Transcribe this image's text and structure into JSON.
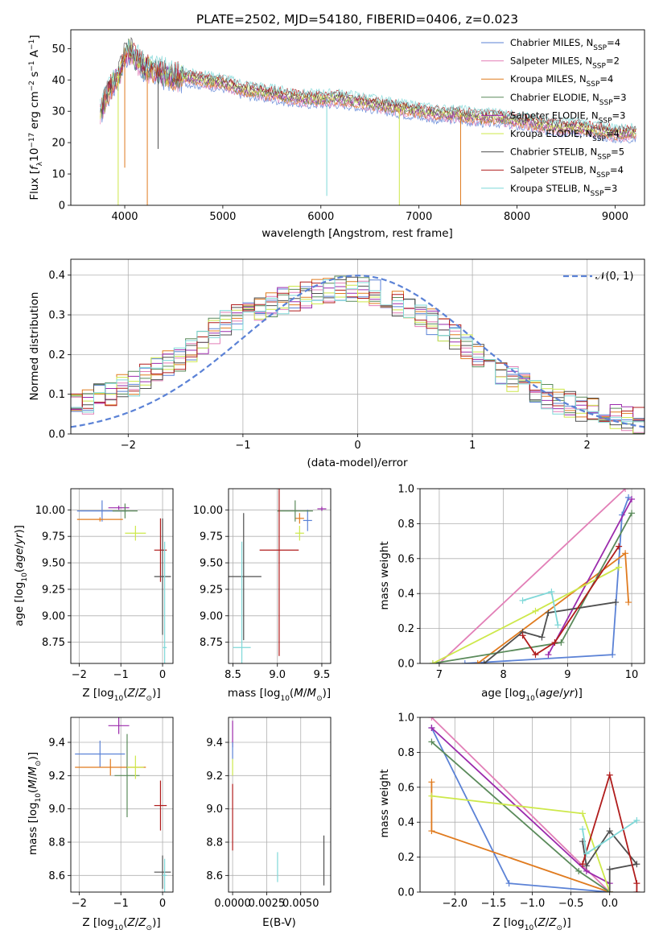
{
  "colors": {
    "Chabrier MILES": "#5b82d6",
    "Salpeter MILES": "#e27fb7",
    "Kroupa MILES": "#e07b1f",
    "Chabrier ELODIE": "#5a8a5a",
    "Salpeter ELODIE": "#9b2aac",
    "Kroupa ELODIE": "#cde84a",
    "Chabrier STELIB": "#4f4f4f",
    "Salpeter STELIB": "#b01c1c",
    "Kroupa STELIB": "#7fd8d8",
    "gaussian": "#5b82d6"
  },
  "chart_data": [
    {
      "id": "spectrum",
      "type": "line",
      "title": "PLATE=2502, MJD=54180, FIBERID=0406, z=0.023",
      "xlabel": "wavelength [Angstrom, rest frame]",
      "ylabel": "Flux [f_λ10^-17 erg cm^-2 s^-1 A^-1]",
      "xlim": [
        3450,
        9300
      ],
      "ylim": [
        0,
        56
      ],
      "xticks": [
        4000,
        5000,
        6000,
        7000,
        8000,
        9000
      ],
      "yticks": [
        0,
        10,
        20,
        30,
        40,
        50
      ],
      "legend_position": "upper-right",
      "series": [
        {
          "name": "Chabrier MILES",
          "n_ssp": "4"
        },
        {
          "name": "Salpeter MILES",
          "n_ssp": "2"
        },
        {
          "name": "Kroupa MILES",
          "n_ssp": "4"
        },
        {
          "name": "Chabrier ELODIE",
          "n_ssp": "3"
        },
        {
          "name": "Salpeter ELODIE",
          "n_ssp": "3"
        },
        {
          "name": "Kroupa ELODIE",
          "n_ssp": "4"
        },
        {
          "name": "Chabrier STELIB",
          "n_ssp": "5"
        },
        {
          "name": "Salpeter STELIB",
          "n_ssp": "4"
        },
        {
          "name": "Kroupa STELIB",
          "n_ssp": "3"
        }
      ],
      "continuum": {
        "x": [
          3750,
          3800,
          3850,
          3900,
          3950,
          4000,
          4050,
          4100,
          4200,
          4300,
          4400,
          4500,
          4600,
          4800,
          5000,
          5200,
          5400,
          5600,
          5800,
          6000,
          6200,
          6400,
          6600,
          6800,
          7000,
          7200,
          7400,
          7600,
          7800,
          8000,
          8200,
          8400,
          8600,
          8800,
          9000,
          9200
        ],
        "y": [
          30,
          34,
          37,
          40,
          43,
          48,
          50,
          47,
          44,
          43,
          42,
          41,
          41,
          40,
          39,
          37,
          36,
          35,
          34,
          34,
          34,
          33,
          32,
          31,
          30,
          29,
          29,
          28,
          28,
          27,
          26,
          25,
          25,
          24,
          23,
          23
        ]
      },
      "dips": [
        {
          "x": 3933,
          "y": 0
        },
        {
          "x": 4000,
          "y": 12
        },
        {
          "x": 4230,
          "y": 0
        },
        {
          "x": 4340,
          "y": 18
        },
        {
          "x": 6060,
          "y": 3
        },
        {
          "x": 6800,
          "y": 0
        },
        {
          "x": 7425,
          "y": 0
        }
      ]
    },
    {
      "id": "residuals",
      "type": "step",
      "xlabel": "(data-model)/error",
      "ylabel": "Normed distribution",
      "xlim": [
        -2.5,
        2.5
      ],
      "ylim": [
        0,
        0.44
      ],
      "xticks": [
        -2,
        -1,
        0,
        1,
        2
      ],
      "yticks": [
        0.0,
        0.1,
        0.2,
        0.3,
        0.4
      ],
      "legend": [
        {
          "name": "𝒩(0, 1)"
        }
      ],
      "legend_position": "upper-right",
      "grid": true,
      "bin_width": 0.1,
      "envelope": {
        "x": [
          -2.5,
          -2.0,
          -1.5,
          -1.2,
          -1.0,
          -0.6,
          -0.3,
          0.0,
          0.3,
          0.6,
          1.0,
          1.3,
          1.6,
          2.0,
          2.5
        ],
        "y": [
          0.07,
          0.12,
          0.2,
          0.27,
          0.3,
          0.34,
          0.36,
          0.37,
          0.34,
          0.29,
          0.21,
          0.15,
          0.1,
          0.06,
          0.03
        ]
      },
      "gaussian": {
        "mean": 0,
        "std": 1
      }
    },
    {
      "id": "age-vs-Z",
      "type": "errorbar",
      "xlabel": "Z [log10(Z/Z_sun)]",
      "ylabel": "age [log10(age/yr)]",
      "xlim": [
        -2.2,
        0.25
      ],
      "ylim": [
        8.55,
        10.2
      ],
      "xticks": [
        -2,
        -1,
        0
      ],
      "yticks": [
        8.75,
        9.0,
        9.25,
        9.5,
        9.75,
        10.0
      ],
      "points": [
        {
          "series": "Chabrier MILES",
          "x": -1.45,
          "xerr": 0.6,
          "y": 9.99,
          "yerr": 0.1
        },
        {
          "series": "Kroupa MILES",
          "x": -1.5,
          "xerr": 0.55,
          "y": 9.91,
          "yerr": 0.02
        },
        {
          "series": "Salpeter ELODIE",
          "x": -1.05,
          "xerr": 0.25,
          "y": 10.02,
          "yerr": 0.02
        },
        {
          "series": "Chabrier ELODIE",
          "x": -0.9,
          "xerr": 0.3,
          "y": 9.99,
          "yerr": 0.07
        },
        {
          "series": "Kroupa ELODIE",
          "x": -0.65,
          "xerr": 0.25,
          "y": 9.78,
          "yerr": 0.07
        },
        {
          "series": "Salpeter STELIB",
          "x": -0.05,
          "xerr": 0.15,
          "y": 9.62,
          "yerr": 0.3
        },
        {
          "series": "Chabrier STELIB",
          "x": 0.0,
          "xerr": 0.2,
          "y": 9.37,
          "yerr": 0.55
        },
        {
          "series": "Kroupa STELIB",
          "x": 0.05,
          "xerr": 0.05,
          "y": 8.7,
          "yerr": 1.0
        }
      ]
    },
    {
      "id": "age-vs-mass",
      "type": "errorbar",
      "xlabel": "mass [log10(M/M_sun)]",
      "ylabel": "",
      "xlim": [
        8.45,
        9.6
      ],
      "ylim": [
        8.55,
        10.2
      ],
      "xticks": [
        8.5,
        9.0,
        9.5
      ],
      "yticks": [
        8.75,
        9.0,
        9.25,
        9.5,
        9.75,
        10.0
      ],
      "points": [
        {
          "series": "Chabrier MILES",
          "x": 9.34,
          "xerr": 0.05,
          "y": 9.9,
          "yerr": 0.1
        },
        {
          "series": "Kroupa MILES",
          "x": 9.25,
          "xerr": 0.05,
          "y": 9.92,
          "yerr": 0.05
        },
        {
          "series": "Salpeter ELODIE",
          "x": 9.5,
          "xerr": 0.05,
          "y": 10.01,
          "yerr": 0.02
        },
        {
          "series": "Chabrier ELODIE",
          "x": 9.2,
          "xerr": 0.2,
          "y": 9.99,
          "yerr": 0.1
        },
        {
          "series": "Kroupa ELODIE",
          "x": 9.25,
          "xerr": 0.05,
          "y": 9.78,
          "yerr": 0.07
        },
        {
          "series": "Salpeter STELIB",
          "x": 9.02,
          "xerr": 0.22,
          "y": 9.62,
          "yerr": 1.0
        },
        {
          "series": "Chabrier STELIB",
          "x": 8.62,
          "xerr": 0.2,
          "y": 9.37,
          "yerr": 0.6
        },
        {
          "series": "Kroupa STELIB",
          "x": 8.6,
          "xerr": 0.1,
          "y": 8.7,
          "yerr": 1.0
        }
      ]
    },
    {
      "id": "weight-vs-age",
      "type": "line",
      "xlabel": "age [log10(age/yr)]",
      "ylabel": "mass weight",
      "xlim": [
        6.7,
        10.2
      ],
      "ylim": [
        0,
        1.0
      ],
      "xticks": [
        7,
        8,
        9,
        10
      ],
      "yticks": [
        0.0,
        0.2,
        0.4,
        0.6,
        0.8,
        1.0
      ],
      "grid": true,
      "series": [
        {
          "series": "Chabrier MILES",
          "x": [
            7.4,
            9.7,
            9.85,
            9.95
          ],
          "y": [
            0.0,
            0.05,
            0.85,
            0.95
          ]
        },
        {
          "series": "Salpeter MILES",
          "x": [
            7.0,
            9.9
          ],
          "y": [
            0.0,
            1.0
          ]
        },
        {
          "series": "Kroupa MILES",
          "x": [
            7.6,
            9.9,
            9.95
          ],
          "y": [
            0.0,
            0.63,
            0.35
          ]
        },
        {
          "series": "Chabrier ELODIE",
          "x": [
            6.9,
            8.9,
            10.0
          ],
          "y": [
            0.0,
            0.12,
            0.86
          ]
        },
        {
          "series": "Salpeter ELODIE",
          "x": [
            8.7,
            10.0
          ],
          "y": [
            0.05,
            0.94
          ]
        },
        {
          "series": "Kroupa ELODIE",
          "x": [
            6.9,
            8.5,
            9.8
          ],
          "y": [
            0.0,
            0.3,
            0.55
          ]
        },
        {
          "series": "Chabrier STELIB",
          "x": [
            7.7,
            8.3,
            8.6,
            8.7,
            9.75
          ],
          "y": [
            0.0,
            0.18,
            0.15,
            0.29,
            0.35
          ]
        },
        {
          "series": "Salpeter STELIB",
          "x": [
            8.3,
            8.5,
            8.8,
            9.8
          ],
          "y": [
            0.16,
            0.05,
            0.12,
            0.67
          ]
        },
        {
          "series": "Kroupa STELIB",
          "x": [
            8.3,
            8.75,
            8.85
          ],
          "y": [
            0.36,
            0.41,
            0.22
          ]
        }
      ]
    },
    {
      "id": "mass-vs-Z",
      "type": "errorbar",
      "xlabel": "Z [log10(Z/Z_sun)]",
      "ylabel": "mass [log10(M/M_sun)]",
      "xlim": [
        -2.2,
        0.25
      ],
      "ylim": [
        8.5,
        9.55
      ],
      "xticks": [
        -2,
        -1,
        0
      ],
      "yticks": [
        8.6,
        8.8,
        9.0,
        9.2,
        9.4
      ],
      "points": [
        {
          "series": "Chabrier MILES",
          "x": -1.5,
          "xerr": 0.6,
          "y": 9.33,
          "yerr": 0.08
        },
        {
          "series": "Kroupa MILES",
          "x": -1.25,
          "xerr": 0.85,
          "y": 9.25,
          "yerr": 0.05
        },
        {
          "series": "Salpeter ELODIE",
          "x": -1.05,
          "xerr": 0.25,
          "y": 9.5,
          "yerr": 0.05
        },
        {
          "series": "Chabrier ELODIE",
          "x": -0.85,
          "xerr": 0.3,
          "y": 9.2,
          "yerr": 0.25
        },
        {
          "series": "Kroupa ELODIE",
          "x": -0.65,
          "xerr": 0.2,
          "y": 9.25,
          "yerr": 0.07
        },
        {
          "series": "Salpeter STELIB",
          "x": -0.05,
          "xerr": 0.15,
          "y": 9.02,
          "yerr": 0.15
        },
        {
          "series": "Chabrier STELIB",
          "x": 0.0,
          "xerr": 0.2,
          "y": 8.62,
          "yerr": 0.1
        },
        {
          "series": "Kroupa STELIB",
          "x": 0.05,
          "xerr": 0.05,
          "y": 8.6,
          "yerr": 0.1
        }
      ]
    },
    {
      "id": "mass-vs-EBV",
      "type": "errorbar",
      "xlabel": "E(B-V)",
      "ylabel": "",
      "xlim": [
        -0.0003,
        0.0072
      ],
      "ylim": [
        8.5,
        9.55
      ],
      "xticks": [
        0.0,
        0.0025,
        0.005
      ],
      "xtick_labels": [
        "0.0000",
        "0.0025",
        "0.0050"
      ],
      "yticks": [
        8.6,
        8.8,
        9.0,
        9.2,
        9.4
      ],
      "points": [
        {
          "series": "Salpeter ELODIE",
          "x": 0.0,
          "y": 9.45,
          "yerr": 0.08
        },
        {
          "series": "Chabrier MILES",
          "x": 0.0,
          "y": 9.35,
          "yerr": 0.05
        },
        {
          "series": "Kroupa ELODIE",
          "x": 0.0,
          "y": 9.25,
          "yerr": 0.05
        },
        {
          "series": "Salpeter STELIB",
          "x": 0.0,
          "y": 8.95,
          "yerr": 0.2
        },
        {
          "series": "Kroupa STELIB",
          "x": 0.0033,
          "y": 8.65,
          "yerr": 0.09
        },
        {
          "series": "Chabrier STELIB",
          "x": 0.0067,
          "y": 8.69,
          "yerr": 0.15
        }
      ]
    },
    {
      "id": "weight-vs-Z",
      "type": "line",
      "xlabel": "Z [log10(Z/Z_sun)]",
      "ylabel": "mass weight",
      "xlim": [
        -2.45,
        0.45
      ],
      "ylim": [
        0,
        1.0
      ],
      "xticks": [
        -2.0,
        -1.5,
        -1.0,
        -0.5,
        0.0
      ],
      "yticks": [
        0.0,
        0.2,
        0.4,
        0.6,
        0.8,
        1.0
      ],
      "grid": true,
      "series": [
        {
          "series": "Chabrier MILES",
          "x": [
            -2.3,
            -1.3,
            0.0
          ],
          "y": [
            0.94,
            0.05,
            0.0
          ]
        },
        {
          "series": "Salpeter MILES",
          "x": [
            -2.3,
            0.0
          ],
          "y": [
            1.0,
            0.0
          ]
        },
        {
          "series": "Kroupa MILES",
          "x": [
            -2.3,
            -2.3,
            0.0,
            0.0
          ],
          "y": [
            0.63,
            0.35,
            0.0,
            0.0
          ]
        },
        {
          "series": "Chabrier ELODIE",
          "x": [
            -2.3,
            -0.4,
            0.0
          ],
          "y": [
            0.86,
            0.12,
            0.0
          ]
        },
        {
          "series": "Salpeter ELODIE",
          "x": [
            -2.3,
            -0.3,
            0.0
          ],
          "y": [
            0.94,
            0.12,
            0.05
          ]
        },
        {
          "series": "Kroupa ELODIE",
          "x": [
            -2.3,
            -0.35,
            0.0
          ],
          "y": [
            0.55,
            0.45,
            0.0
          ]
        },
        {
          "series": "Chabrier STELIB",
          "x": [
            -0.35,
            -0.3,
            0.0,
            0.35,
            0.0,
            0.0
          ],
          "y": [
            0.29,
            0.15,
            0.35,
            0.16,
            0.13,
            0.0
          ]
        },
        {
          "series": "Salpeter STELIB",
          "x": [
            -0.35,
            0.0,
            0.35,
            0.35
          ],
          "y": [
            0.16,
            0.67,
            0.05,
            0.0
          ]
        },
        {
          "series": "Kroupa STELIB",
          "x": [
            -0.35,
            -0.3,
            0.35
          ],
          "y": [
            0.36,
            0.22,
            0.41
          ]
        }
      ]
    }
  ]
}
